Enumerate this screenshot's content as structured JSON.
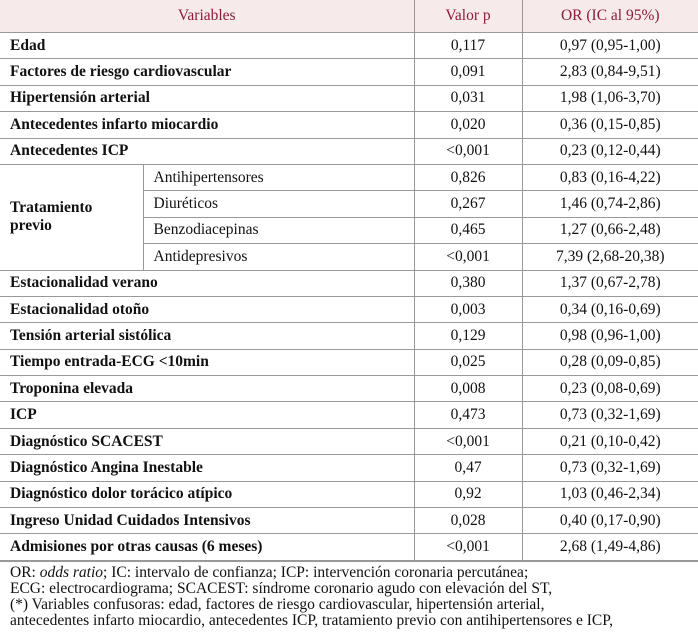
{
  "table": {
    "header": [
      "Variables",
      "Valor p",
      "OR (IC al 95%)"
    ],
    "rows": [
      {
        "variable": "Edad",
        "p": "0,117",
        "or": "0,97 (0,95-1,00)"
      },
      {
        "variable": "Factores de riesgo cardiovascular",
        "p": "0,091",
        "or": "2,83 (0,84-9,51)"
      },
      {
        "variable": "Hipertensión arterial",
        "p": "0,031",
        "or": "1,98 (1,06-3,70)"
      },
      {
        "variable": "Antecedentes infarto miocardio",
        "p": "0,020",
        "or": "0,36 (0,15-0,85)"
      },
      {
        "variable": "Antecedentes ICP",
        "p": "<0,001",
        "or": "0,23 (0,12-0,44)"
      },
      {
        "variable": "Tratamiento previo",
        "subrows": [
          {
            "name": "Antihipertensores",
            "p": "0,826",
            "or": "0,83 (0,16-4,22)"
          },
          {
            "name": "Diuréticos",
            "p": "0,267",
            "or": "1,46 (0,74-2,86)"
          },
          {
            "name": "Benzodiacepinas",
            "p": "0,465",
            "or": "1,27 (0,66-2,48)"
          },
          {
            "name": "Antidepresivos",
            "p": "<0,001",
            "or": "7,39 (2,68-20,38)"
          }
        ]
      },
      {
        "variable": "Estacionalidad verano",
        "p": "0,380",
        "or": "1,37 (0,67-2,78)"
      },
      {
        "variable": "Estacionalidad otoño",
        "p": "0,003",
        "or": "0,34 (0,16-0,69)"
      },
      {
        "variable": "Tensión arterial sistólica",
        "p": "0,129",
        "or": "0,98 (0,96-1,00)"
      },
      {
        "variable": "Tiempo entrada-ECG <10min",
        "p": "0,025",
        "or": "0,28 (0,09-0,85)"
      },
      {
        "variable": "Troponina elevada",
        "p": "0,008",
        "or": "0,23 (0,08-0,69)"
      },
      {
        "variable": "ICP",
        "p": "0,473",
        "or": "0,73 (0,32-1,69)"
      },
      {
        "variable": "Diagnóstico SCACEST",
        "p": "<0,001",
        "or": "0,21 (0,10-0,42)"
      },
      {
        "variable": "Diagnóstico Angina Inestable",
        "p": "0,47",
        "or": "0,73 (0,32-1,69)"
      },
      {
        "variable": "Diagnóstico dolor torácico atípico",
        "p": "0,92",
        "or": "1,03 (0,46-2,34)"
      },
      {
        "variable": "Ingreso Unidad Cuidados Intensivos",
        "p": "0,028",
        "or": "0,40 (0,17-0,90)"
      },
      {
        "variable": "Admisiones por otras causas (6 meses)",
        "p": "<0,001",
        "or": "2,68 (1,49-4,86)"
      }
    ]
  },
  "footnote": {
    "line0": [
      "OR: ",
      "odds ratio",
      "; IC: intervalo de confianza; ICP: intervención coronaria percutánea;"
    ],
    "lines": [
      "ECG: electrocardiograma; SCACEST: síndrome coronario agudo con elevación del ST,",
      "(*) Variables confusoras: edad, factores de riesgo cardiovascular, hipertensión arterial,",
      "antecedentes infarto miocardio, antecedentes ICP, tratamiento previo con antihipertensores e ICP,"
    ]
  }
}
